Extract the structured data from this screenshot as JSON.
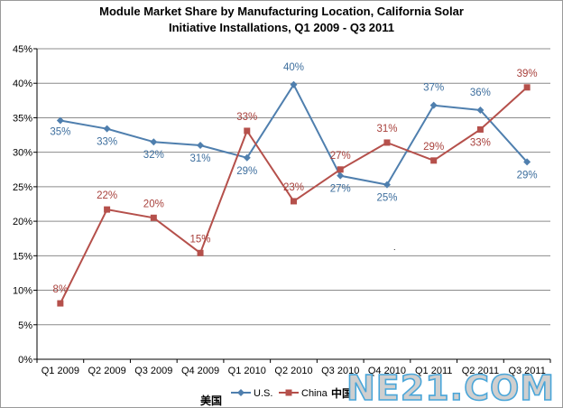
{
  "chart_data": {
    "type": "line",
    "title_lines": [
      "Module Market Share by Manufacturing Location, California Solar",
      "Initiative Installations, Q1 2009 - Q3 2011"
    ],
    "categories": [
      "Q1 2009",
      "Q2 2009",
      "Q3 2009",
      "Q4 2009",
      "Q1 2010",
      "Q2 2010",
      "Q3 2010",
      "Q4 2010",
      "Q1 2011",
      "Q2 2011",
      "Q3 2011"
    ],
    "ylim": [
      0,
      45
    ],
    "yticks": [
      "0%",
      "5%",
      "10%",
      "15%",
      "20%",
      "25%",
      "30%",
      "35%",
      "40%",
      "45%"
    ],
    "grid": true,
    "legend_position": "bottom",
    "series": [
      {
        "name": "U.S.",
        "color": "#4f7fae",
        "marker": "diamond",
        "values": [
          34.6,
          33.4,
          31.5,
          31.0,
          29.2,
          39.8,
          26.6,
          25.3,
          36.8,
          36.1,
          28.6
        ],
        "labels": [
          "35%",
          "33%",
          "32%",
          "31%",
          "29%",
          "40%",
          "27%",
          "25%",
          "37%",
          "36%",
          "29%"
        ]
      },
      {
        "name": "China",
        "color": "#b5504b",
        "marker": "square",
        "values": [
          8.1,
          21.7,
          20.5,
          15.4,
          33.1,
          22.9,
          27.5,
          31.4,
          28.8,
          33.3,
          39.4
        ],
        "labels": [
          "8%",
          "22%",
          "20%",
          "15%",
          "33%",
          "23%",
          "27%",
          "31%",
          "29%",
          "33%",
          "39%"
        ]
      }
    ]
  },
  "legend_cn": {
    "us": "美国",
    "china": "中国"
  },
  "watermark": "NE21.COM"
}
